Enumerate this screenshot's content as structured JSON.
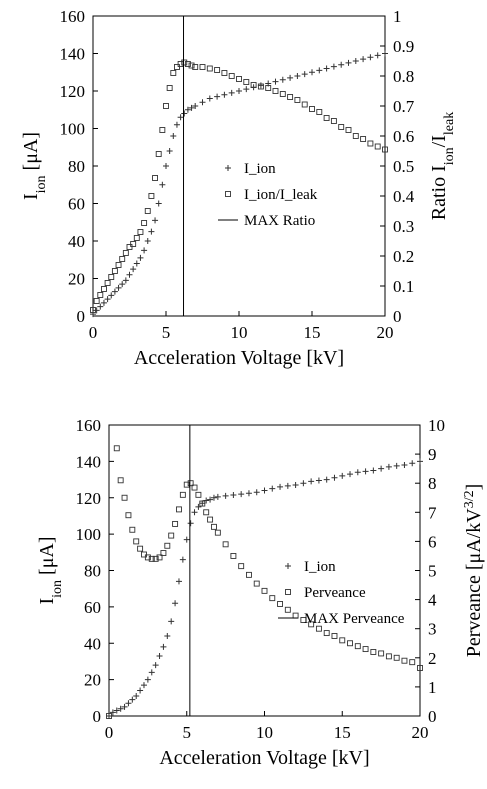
{
  "chart_data": [
    {
      "type": "scatter",
      "xlabel": "Acceleration Voltage [kV]",
      "ylabel": {
        "parts": [
          "I",
          "ion",
          " [μA]"
        ],
        "script": "sub"
      },
      "y2label": {
        "parts": [
          "Ratio I",
          "ion",
          "/I",
          "leak"
        ],
        "script": "sub"
      },
      "xlim": [
        0,
        20
      ],
      "xticks": [
        0,
        5,
        10,
        15,
        20
      ],
      "ylim": [
        0,
        160
      ],
      "yticks": [
        0,
        20,
        40,
        60,
        80,
        100,
        120,
        140,
        160
      ],
      "y2lim": [
        0,
        1
      ],
      "y2ticks": [
        0,
        0.1,
        0.2,
        0.3,
        0.4,
        0.5,
        0.6,
        0.7,
        0.8,
        0.9,
        1
      ],
      "x": [
        0,
        0.25,
        0.5,
        0.75,
        1,
        1.25,
        1.5,
        1.75,
        2,
        2.25,
        2.5,
        2.75,
        3,
        3.25,
        3.5,
        3.75,
        4,
        4.25,
        4.5,
        4.75,
        5,
        5.25,
        5.5,
        5.75,
        6,
        6.25,
        6.5,
        6.75,
        7,
        7.5,
        8,
        8.5,
        9,
        9.5,
        10,
        10.5,
        11,
        11.5,
        12,
        12.5,
        13,
        13.5,
        14,
        14.5,
        15,
        15.5,
        16,
        16.5,
        17,
        17.5,
        18,
        18.5,
        19,
        19.5,
        20
      ],
      "series": [
        {
          "name": "I_ion",
          "marker": "plus",
          "color": "#333333",
          "axis": "y",
          "values": [
            1,
            3,
            5,
            7,
            9,
            11,
            13,
            15,
            17,
            19,
            22,
            25,
            28,
            31,
            35,
            40,
            45,
            51,
            60,
            70,
            80,
            88,
            96,
            102,
            106,
            108,
            110,
            111,
            112,
            114,
            116,
            117,
            118,
            119,
            120,
            121,
            122,
            123,
            124,
            125,
            126,
            127,
            128,
            129,
            130,
            131,
            132,
            133,
            134,
            135,
            136,
            137,
            138,
            139,
            140
          ]
        },
        {
          "name": "I_ion/I_leak",
          "marker": "square",
          "color": "#333333",
          "axis": "y2",
          "values": [
            0.02,
            0.05,
            0.07,
            0.09,
            0.11,
            0.13,
            0.15,
            0.17,
            0.19,
            0.21,
            0.23,
            0.24,
            0.26,
            0.28,
            0.31,
            0.35,
            0.4,
            0.46,
            0.54,
            0.62,
            0.7,
            0.76,
            0.81,
            0.83,
            0.84,
            0.845,
            0.84,
            0.835,
            0.83,
            0.83,
            0.825,
            0.82,
            0.81,
            0.8,
            0.79,
            0.78,
            0.77,
            0.765,
            0.76,
            0.75,
            0.74,
            0.73,
            0.72,
            0.705,
            0.69,
            0.68,
            0.66,
            0.65,
            0.63,
            0.62,
            0.6,
            0.59,
            0.575,
            0.565,
            0.555
          ]
        }
      ],
      "vline": {
        "name": "MAX Ratio",
        "x": 6.2
      }
    },
    {
      "type": "scatter",
      "xlabel": "Acceleration Voltage [kV]",
      "ylabel": {
        "parts": [
          "I",
          "ion",
          " [μA]"
        ],
        "script": "sub"
      },
      "y2label": {
        "parts": [
          "Perveance [μA/kV",
          "3/2",
          "]"
        ],
        "script": "sup"
      },
      "xlim": [
        0,
        20
      ],
      "xticks": [
        0,
        5,
        10,
        15,
        20
      ],
      "ylim": [
        0,
        160
      ],
      "yticks": [
        0,
        20,
        40,
        60,
        80,
        100,
        120,
        140,
        160
      ],
      "y2lim": [
        0,
        10
      ],
      "y2ticks": [
        0,
        1,
        2,
        3,
        4,
        5,
        6,
        7,
        8,
        9,
        10
      ],
      "x": [
        0,
        0.25,
        0.5,
        0.75,
        1,
        1.25,
        1.5,
        1.75,
        2,
        2.25,
        2.5,
        2.75,
        3,
        3.25,
        3.5,
        3.75,
        4,
        4.25,
        4.5,
        4.75,
        5,
        5.25,
        5.5,
        5.75,
        6,
        6.25,
        6.5,
        6.75,
        7,
        7.5,
        8,
        8.5,
        9,
        9.5,
        10,
        10.5,
        11,
        11.5,
        12,
        12.5,
        13,
        13.5,
        14,
        14.5,
        15,
        15.5,
        16,
        16.5,
        17,
        17.5,
        18,
        18.5,
        19,
        19.5,
        20
      ],
      "series": [
        {
          "name": "I_ion",
          "marker": "plus",
          "color": "#333333",
          "axis": "y",
          "values": [
            0,
            2,
            3,
            4,
            5,
            7,
            9,
            11,
            14,
            17,
            20,
            24,
            28,
            33,
            38,
            44,
            52,
            62,
            74,
            86,
            97,
            106,
            112,
            115,
            117,
            118.5,
            119,
            120,
            120.5,
            121,
            121.5,
            122,
            122.5,
            123,
            124,
            125,
            126,
            126.5,
            127,
            128,
            129,
            129.5,
            130,
            131,
            132,
            133,
            134,
            134.5,
            135,
            136,
            137,
            137.5,
            138,
            139,
            140
          ]
        },
        {
          "name": "Perveance",
          "marker": "square",
          "color": "#333333",
          "axis": "y2",
          "values": [
            0,
            null,
            9.2,
            8.1,
            7.5,
            6.9,
            6.4,
            6.0,
            5.75,
            5.55,
            5.45,
            5.4,
            5.4,
            5.45,
            5.6,
            5.85,
            6.2,
            6.6,
            7.1,
            7.6,
            7.95,
            8.0,
            7.85,
            7.6,
            7.3,
            7.0,
            6.75,
            6.5,
            6.3,
            5.9,
            5.5,
            5.15,
            4.85,
            4.55,
            4.3,
            4.05,
            3.85,
            3.65,
            3.45,
            3.3,
            3.15,
            3.0,
            2.85,
            2.75,
            2.6,
            2.5,
            2.4,
            2.3,
            2.2,
            2.15,
            2.05,
            2.0,
            1.9,
            1.85,
            1.65
          ]
        }
      ],
      "vline": {
        "name": "MAX Perveance",
        "x": 5.2
      }
    }
  ]
}
